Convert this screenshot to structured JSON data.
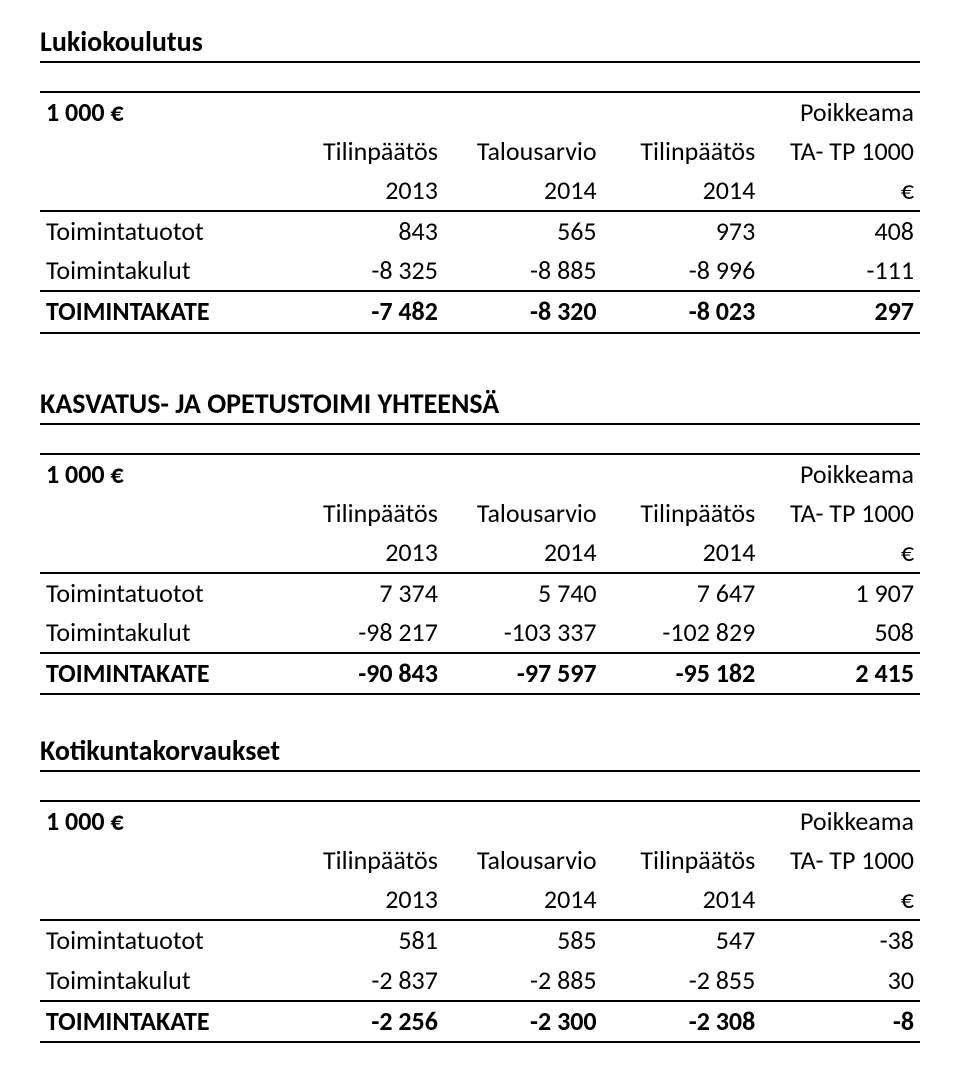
{
  "sections": [
    {
      "title": "Lukiokoulutus",
      "tables": [
        {
          "header_top": [
            "1 000 €",
            "",
            "",
            "",
            "Poikkeama"
          ],
          "header_mid": [
            "",
            "Tilinpäätös",
            "Talousarvio",
            "Tilinpäätös",
            "TA- TP 1000"
          ],
          "header_bot": [
            "",
            "2013",
            "2014",
            "2014",
            "€"
          ],
          "rows": [
            {
              "label": "Toimintatuotot",
              "cells": [
                "843",
                "565",
                "973",
                "408"
              ]
            },
            {
              "label": "Toimintakulut",
              "cells": [
                "-8 325",
                "-8 885",
                "-8 996",
                "-111"
              ]
            }
          ],
          "total": {
            "label": "TOIMINTAKATE",
            "cells": [
              "-7 482",
              "-8 320",
              "-8 023",
              "297"
            ]
          }
        }
      ]
    },
    {
      "title": "KASVATUS- JA OPETUSTOIMI YHTEENSÄ",
      "tables": [
        {
          "header_top": [
            "1 000 €",
            "",
            "",
            "",
            "Poikkeama"
          ],
          "header_mid": [
            "",
            "Tilinpäätös",
            "Talousarvio",
            "Tilinpäätös",
            "TA- TP 1000"
          ],
          "header_bot": [
            "",
            "2013",
            "2014",
            "2014",
            "€"
          ],
          "rows": [
            {
              "label": "Toimintatuotot",
              "cells": [
                "7 374",
                "5 740",
                "7 647",
                "1 907"
              ]
            },
            {
              "label": "Toimintakulut",
              "cells": [
                "-98 217",
                "-103 337",
                "-102 829",
                "508"
              ]
            }
          ],
          "total": {
            "label": "TOIMINTAKATE",
            "cells": [
              "-90 843",
              "-97 597",
              "-95 182",
              "2 415"
            ]
          }
        }
      ]
    },
    {
      "title": "Kotikuntakorvaukset",
      "tables": [
        {
          "header_top": [
            "1 000 €",
            "",
            "",
            "",
            "Poikkeama"
          ],
          "header_mid": [
            "",
            "Tilinpäätös",
            "Talousarvio",
            "Tilinpäätös",
            "TA- TP 1000"
          ],
          "header_bot": [
            "",
            "2013",
            "2014",
            "2014",
            "€"
          ],
          "rows": [
            {
              "label": "Toimintatuotot",
              "cells": [
                "581",
                "585",
                "547",
                "-38"
              ]
            },
            {
              "label": "Toimintakulut",
              "cells": [
                "-2 837",
                "-2 885",
                "-2 855",
                "30"
              ]
            }
          ],
          "total": {
            "label": "TOIMINTAKATE",
            "cells": [
              "-2 256",
              "-2 300",
              "-2 308",
              "-8"
            ]
          }
        }
      ]
    }
  ]
}
